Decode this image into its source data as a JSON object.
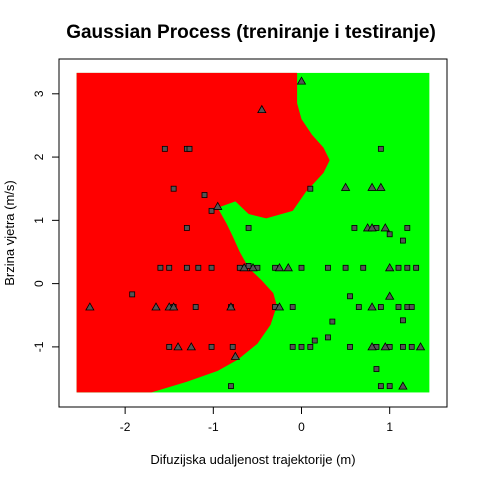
{
  "chart_data": {
    "type": "scatter",
    "title": "Gaussian Process (treniranje i testiranje)",
    "xlabel": "Difuzijska udaljenost trajektorije (m)",
    "ylabel": "Brzina vjetra (m/s)",
    "xlim": [
      -2.75,
      1.65
    ],
    "ylim": [
      -1.95,
      3.55
    ],
    "x_ticks": [
      -2,
      -1,
      0,
      1
    ],
    "y_ticks": [
      -1,
      0,
      1,
      2,
      3
    ],
    "grid": false,
    "legend": "none",
    "colors": {
      "class_1": "#ff0000",
      "class_2": "#00ff00",
      "marker_fill": "#555555",
      "marker_stroke": "#000000"
    },
    "regions": {
      "extent_x": [
        -2.55,
        1.45
      ],
      "extent_y": [
        -1.72,
        3.33
      ],
      "class_1_color": "#ff0000",
      "class_2_color": "#00ff00",
      "boundary": [
        [
          -0.05,
          3.33
        ],
        [
          -0.05,
          2.85
        ],
        [
          0.0,
          2.6
        ],
        [
          0.12,
          2.35
        ],
        [
          0.25,
          2.15
        ],
        [
          0.32,
          1.95
        ],
        [
          0.25,
          1.75
        ],
        [
          0.05,
          1.45
        ],
        [
          -0.1,
          1.15
        ],
        [
          -0.4,
          1.03
        ],
        [
          -0.6,
          1.1
        ],
        [
          -0.75,
          1.3
        ],
        [
          -0.95,
          1.2
        ],
        [
          -0.85,
          0.95
        ],
        [
          -0.78,
          0.75
        ],
        [
          -0.7,
          0.5
        ],
        [
          -0.6,
          0.25
        ],
        [
          -0.45,
          0.05
        ],
        [
          -0.32,
          -0.15
        ],
        [
          -0.28,
          -0.35
        ],
        [
          -0.35,
          -0.65
        ],
        [
          -0.5,
          -0.95
        ],
        [
          -0.72,
          -1.2
        ],
        [
          -0.95,
          -1.38
        ],
        [
          -1.3,
          -1.55
        ],
        [
          -1.7,
          -1.72
        ]
      ]
    },
    "series": [
      {
        "marker": "square",
        "points": [
          [
            -1.55,
            2.13
          ],
          [
            -1.3,
            2.13
          ],
          [
            -1.27,
            2.13
          ],
          [
            -1.45,
            1.5
          ],
          [
            -1.1,
            1.4
          ],
          [
            -1.02,
            1.15
          ],
          [
            -1.3,
            0.88
          ],
          [
            -0.6,
            0.88
          ],
          [
            -1.6,
            0.25
          ],
          [
            -1.5,
            0.25
          ],
          [
            -1.3,
            0.25
          ],
          [
            -1.17,
            0.25
          ],
          [
            -1.02,
            0.25
          ],
          [
            -0.7,
            0.25
          ],
          [
            -0.5,
            0.25
          ],
          [
            -1.92,
            -0.17
          ],
          [
            -1.45,
            -0.37
          ],
          [
            -1.2,
            -0.37
          ],
          [
            -0.8,
            -0.37
          ],
          [
            -0.3,
            -0.37
          ],
          [
            -1.5,
            -1.0
          ],
          [
            -1.02,
            -1.0
          ],
          [
            -0.78,
            -1.0
          ],
          [
            -0.8,
            -1.62
          ],
          [
            -0.6,
            0.28
          ],
          [
            -0.3,
            0.25
          ],
          [
            -0.1,
            -1.0
          ],
          [
            0.1,
            1.5
          ],
          [
            0.9,
            2.13
          ],
          [
            0.0,
            0.25
          ],
          [
            0.3,
            0.25
          ],
          [
            0.5,
            0.25
          ],
          [
            0.6,
            0.88
          ],
          [
            0.7,
            0.25
          ],
          [
            0.85,
            0.88
          ],
          [
            1.0,
            0.78
          ],
          [
            1.15,
            0.68
          ],
          [
            1.2,
            0.88
          ],
          [
            1.1,
            0.25
          ],
          [
            1.2,
            0.25
          ],
          [
            1.3,
            0.25
          ],
          [
            -0.1,
            -0.37
          ],
          [
            0.55,
            -0.2
          ],
          [
            0.65,
            -0.37
          ],
          [
            0.9,
            -0.37
          ],
          [
            1.1,
            -0.37
          ],
          [
            1.2,
            -0.37
          ],
          [
            1.25,
            -0.37
          ],
          [
            0.35,
            -0.6
          ],
          [
            0.3,
            -0.85
          ],
          [
            0.15,
            -0.9
          ],
          [
            0.1,
            -1.0
          ],
          [
            0.0,
            -1.0
          ],
          [
            0.85,
            -1.0
          ],
          [
            1.0,
            -1.0
          ],
          [
            1.15,
            -1.0
          ],
          [
            1.25,
            -1.0
          ],
          [
            1.15,
            -0.58
          ],
          [
            0.9,
            -1.62
          ],
          [
            1.0,
            -1.62
          ],
          [
            0.85,
            -1.35
          ],
          [
            0.55,
            -1.0
          ]
        ]
      },
      {
        "marker": "triangle",
        "points": [
          [
            -0.45,
            2.75
          ],
          [
            -0.95,
            1.22
          ],
          [
            -0.55,
            0.25
          ],
          [
            -0.25,
            0.25
          ],
          [
            -0.8,
            -0.37
          ],
          [
            -1.5,
            -0.37
          ],
          [
            -1.45,
            -0.37
          ],
          [
            -1.65,
            -0.37
          ],
          [
            -1.4,
            -1.0
          ],
          [
            -0.75,
            -1.15
          ],
          [
            -2.4,
            -0.37
          ],
          [
            -1.25,
            -1.0
          ],
          [
            0.0,
            3.2
          ],
          [
            0.5,
            1.52
          ],
          [
            0.8,
            1.52
          ],
          [
            0.9,
            1.52
          ],
          [
            0.75,
            0.88
          ],
          [
            0.8,
            0.88
          ],
          [
            0.95,
            0.88
          ],
          [
            1.0,
            0.25
          ],
          [
            0.8,
            -0.37
          ],
          [
            1.0,
            -0.2
          ],
          [
            0.95,
            -1.0
          ],
          [
            0.8,
            -1.0
          ],
          [
            1.35,
            -1.0
          ],
          [
            1.15,
            -1.62
          ],
          [
            -0.25,
            -0.37
          ],
          [
            -0.65,
            0.25
          ],
          [
            -0.15,
            0.25
          ]
        ]
      }
    ]
  }
}
